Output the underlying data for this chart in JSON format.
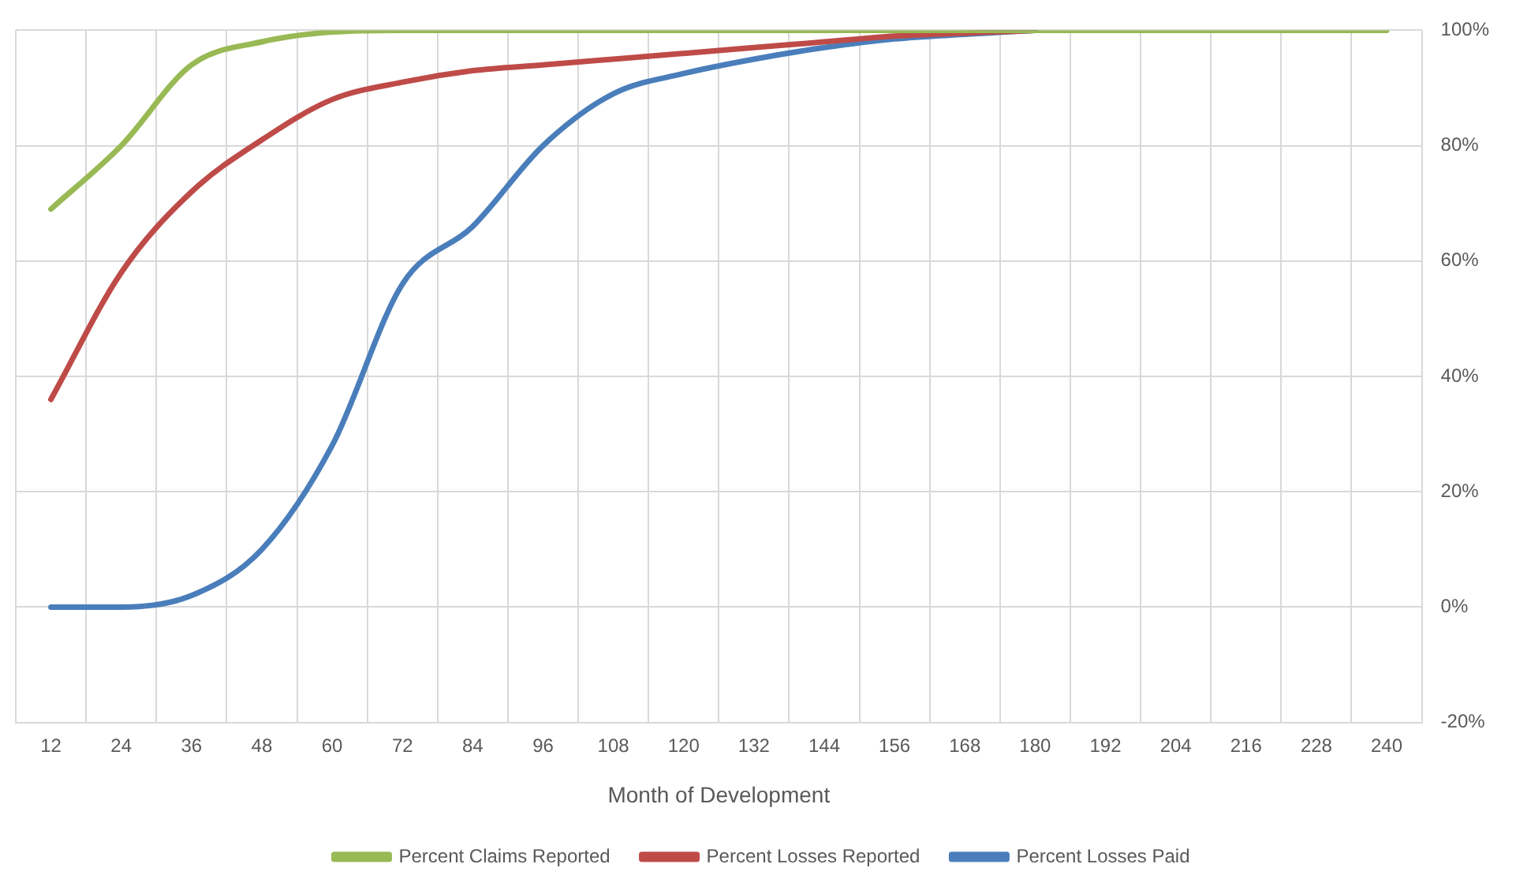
{
  "chart_data": {
    "type": "line",
    "xlabel": "Month of Development",
    "categories": [
      "12",
      "24",
      "36",
      "48",
      "60",
      "72",
      "84",
      "96",
      "108",
      "120",
      "132",
      "144",
      "156",
      "168",
      "180",
      "192",
      "204",
      "216",
      "228",
      "240"
    ],
    "series": [
      {
        "name": "Percent Losses Paid",
        "color": "#4a7ebb",
        "values": [
          0,
          0,
          2,
          10,
          28,
          56,
          66,
          80,
          89,
          92.5,
          95,
          97,
          98.5,
          99.3,
          100,
          null,
          null,
          null,
          null,
          null
        ]
      },
      {
        "name": "Percent Losses Reported",
        "color": "#be4b48",
        "values": [
          36,
          58,
          72,
          81,
          88,
          91,
          93,
          94,
          95,
          96,
          97,
          98,
          99,
          99.5,
          100,
          null,
          null,
          null,
          null,
          null
        ]
      },
      {
        "name": "Percent Claims Reported",
        "color": "#98b954",
        "values": [
          69,
          80,
          94,
          98,
          99.7,
          100,
          100,
          100,
          100,
          100,
          100,
          100,
          100,
          100,
          100,
          100,
          100,
          100,
          100,
          100
        ]
      }
    ],
    "ylim": [
      -20,
      100
    ],
    "yticks": [
      {
        "value": -20,
        "label": "-20%"
      },
      {
        "value": 0,
        "label": "0%"
      },
      {
        "value": 20,
        "label": "20%"
      },
      {
        "value": 40,
        "label": "40%"
      },
      {
        "value": 60,
        "label": "60%"
      },
      {
        "value": 80,
        "label": "80%"
      },
      {
        "value": 100,
        "label": "100%"
      }
    ],
    "grid": true,
    "legend": "bottom",
    "marker": "none",
    "line_style": "solid"
  }
}
